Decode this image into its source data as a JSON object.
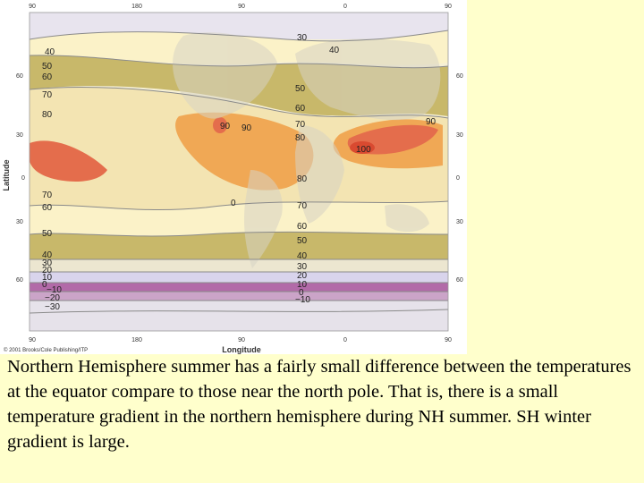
{
  "map": {
    "top_lon_labels": [
      "90",
      "180",
      "90",
      "0",
      "90"
    ],
    "bottom_lon_labels": [
      "90",
      "180",
      "90",
      "0",
      "90"
    ],
    "left_lat_labels": [
      "60",
      "30",
      "0",
      "30",
      "60"
    ],
    "right_lat_labels": [
      "60",
      "30",
      "0",
      "30",
      "60"
    ],
    "axis_x_title": "Longitude",
    "axis_y_title": "Latitude",
    "credit": "© 2001 Brooks/Cole Publishing/ITP",
    "isotherm_labels": {
      "west": [
        "40",
        "50",
        "60",
        "70",
        "80",
        "70",
        "60",
        "50",
        "40",
        "30",
        "20",
        "10",
        "0",
        "−10",
        "−20",
        "−30"
      ],
      "north": [
        "30",
        "40",
        "50",
        "60",
        "70",
        "80",
        "90"
      ],
      "central": [
        "90",
        "80",
        "0",
        "70",
        "60",
        "50",
        "40",
        "30",
        "20",
        "10",
        "0",
        "−10"
      ],
      "asia": [
        "100",
        "90"
      ]
    },
    "colors": {
      "very_cold": "#b26aa8",
      "cold": "#cba4c8",
      "cool": "#d9d4ec",
      "mild": "#c8b86a",
      "warm": "#f3e4b2",
      "hot": "#f0a855",
      "very_hot": "#e46d4c",
      "extreme": "#d94a30"
    }
  },
  "caption": "Northern Hemisphere summer has a fairly small difference between the temperatures at the equator compare to those near the north pole. That is, there is a small temperature gradient in the northern hemisphere during NH summer. SH winter gradient is large."
}
